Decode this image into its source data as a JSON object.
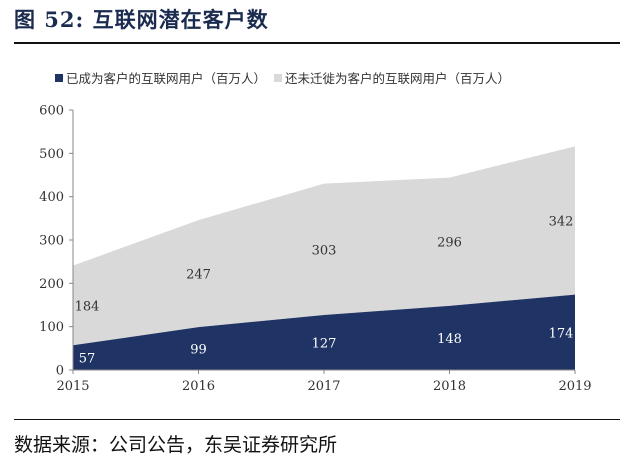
{
  "figure": {
    "title": "图 52:  互联网潜在客户数",
    "source": "数据来源：公司公告，东吴证券研究所"
  },
  "chart_data": {
    "type": "area",
    "stacked": true,
    "categories": [
      "2015",
      "2016",
      "2017",
      "2018",
      "2019"
    ],
    "series": [
      {
        "name": "已成为客户的互联网用户（百万人）",
        "values": [
          57,
          99,
          127,
          148,
          174
        ],
        "color": "#1f3464",
        "label_color": "#ffffff"
      },
      {
        "name": "还未迁徙为客户的互联网用户（百万人）",
        "values": [
          184,
          247,
          303,
          296,
          342
        ],
        "color": "#d9d9d9",
        "label_color": "#333333"
      }
    ],
    "yticks": [
      "0",
      "100",
      "200",
      "300",
      "400",
      "500",
      "600"
    ],
    "ylim": [
      0,
      600
    ],
    "legend_position": "top",
    "grid": false
  }
}
